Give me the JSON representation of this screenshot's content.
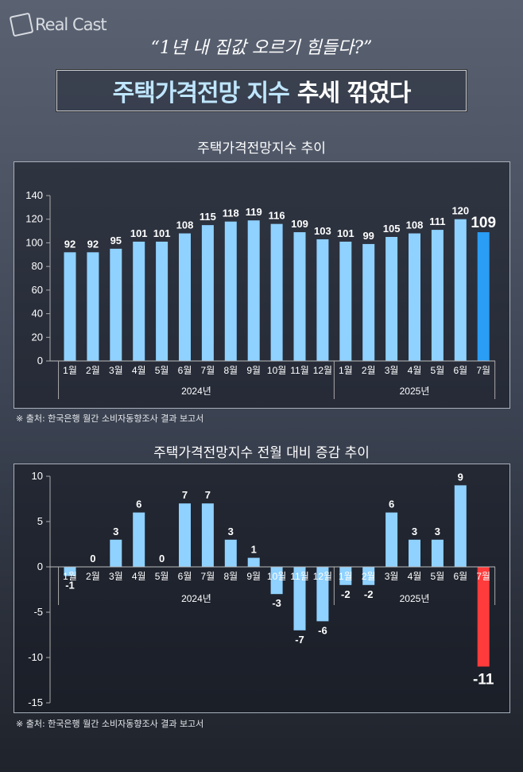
{
  "logo": {
    "text": "Real Cast"
  },
  "subtitle": "“1년 내 집값 오르기 힘들다?”",
  "headline": {
    "part1": "주택가격전망 지수",
    "part2": "추세 꺾였다"
  },
  "source": "※ 출처: 한국은행 월간 소비자동향조사 결과 보고서",
  "colors": {
    "bar": "#8fd1ff",
    "highlight": "#2a9df4",
    "negative_highlight": "#ff3b3b"
  },
  "chart_data": [
    {
      "type": "bar",
      "title": "주택가격전망지수 추이",
      "categories": [
        "1월",
        "2월",
        "3월",
        "4월",
        "5월",
        "6월",
        "7월",
        "8월",
        "9월",
        "10월",
        "11월",
        "12월",
        "1월",
        "2월",
        "3월",
        "4월",
        "5월",
        "6월",
        "7월"
      ],
      "groups": [
        {
          "label": "2024년",
          "count": 12
        },
        {
          "label": "2025년",
          "count": 7
        }
      ],
      "values": [
        92,
        92,
        95,
        101,
        101,
        108,
        115,
        118,
        119,
        116,
        109,
        103,
        101,
        99,
        105,
        108,
        111,
        120,
        109
      ],
      "yticks": [
        0,
        20,
        40,
        60,
        80,
        100,
        120,
        140
      ],
      "ylim": [
        0,
        140
      ],
      "highlight_index": 18,
      "grid": false
    },
    {
      "type": "bar",
      "title": "주택가격전망지수 전월 대비 증감 추이",
      "categories": [
        "1월",
        "2월",
        "3월",
        "4월",
        "5월",
        "6월",
        "7월",
        "8월",
        "9월",
        "10월",
        "11월",
        "12월",
        "1월",
        "2월",
        "3월",
        "4월",
        "5월",
        "6월",
        "7월"
      ],
      "groups": [
        {
          "label": "2024년",
          "count": 12
        },
        {
          "label": "2025년",
          "count": 7
        }
      ],
      "values": [
        -1,
        0,
        3,
        6,
        0,
        7,
        7,
        3,
        1,
        -3,
        -7,
        -6,
        -2,
        -2,
        6,
        3,
        3,
        9,
        -11
      ],
      "yticks": [
        10,
        5,
        0,
        -5,
        -10,
        -15
      ],
      "ylim": [
        -15,
        10
      ],
      "highlight_index": 18,
      "grid": false
    }
  ]
}
